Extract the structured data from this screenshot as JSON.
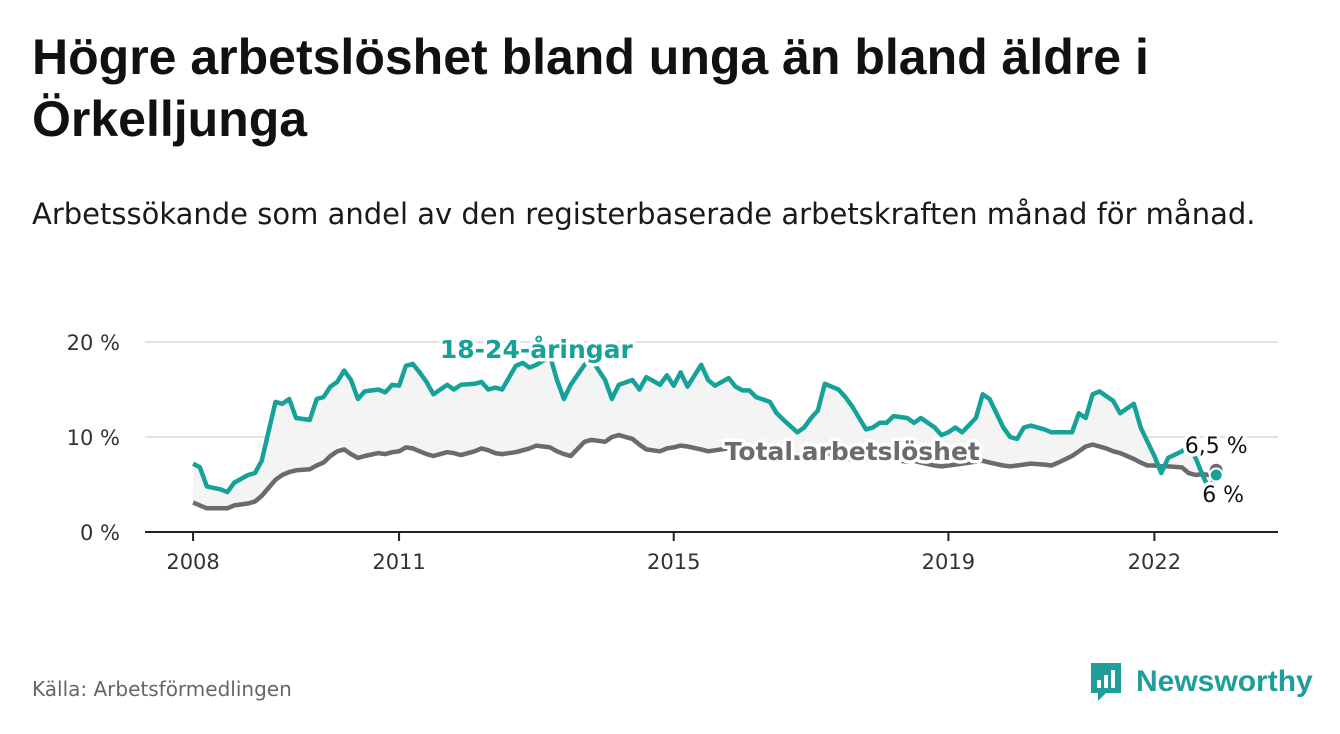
{
  "title": "Högre arbetslöshet bland unga än bland äldre i Örkelljunga",
  "subtitle": "Arbetssökande som andel av den registerbaserade arbetskraften månad för månad.",
  "source": "Källa: Arbetsförmedlingen",
  "brand": {
    "name": "Newsworthy",
    "icon": "newsworthy-logo-icon"
  },
  "colors": {
    "youth": "#16a299",
    "total": "#6b6b6e",
    "grid": "#d9d9d9",
    "fill": "#f4f4f4",
    "axis": "#222222"
  },
  "chart_data": {
    "type": "line",
    "title": "Högre arbetslöshet bland unga än bland äldre i Örkelljunga",
    "xlabel": "",
    "ylabel": "",
    "ylim": [
      0,
      20
    ],
    "xlim": [
      2007.3,
      2023.8
    ],
    "grid": true,
    "y_ticks": [
      0,
      10,
      20
    ],
    "y_tick_labels": [
      "0 %",
      "10 %",
      "20 %"
    ],
    "x_ticks": [
      2008,
      2011,
      2015,
      2019,
      2022
    ],
    "x_tick_labels": [
      "2008",
      "2011",
      "2015",
      "2019",
      "2022"
    ],
    "series": [
      {
        "name": "18-24-åringar",
        "label": "18-24-åringar",
        "end_label": "6 %",
        "x": [
          2008.0,
          2008.1,
          2008.2,
          2008.4,
          2008.5,
          2008.6,
          2008.8,
          2008.9,
          2009.0,
          2009.2,
          2009.3,
          2009.4,
          2009.5,
          2009.7,
          2009.8,
          2009.9,
          2010.0,
          2010.1,
          2010.2,
          2010.3,
          2010.4,
          2010.5,
          2010.7,
          2010.8,
          2010.9,
          2011.0,
          2011.1,
          2011.2,
          2011.3,
          2011.4,
          2011.5,
          2011.7,
          2011.8,
          2011.9,
          2012.1,
          2012.2,
          2012.3,
          2012.4,
          2012.5,
          2012.7,
          2012.8,
          2012.9,
          2013.0,
          2013.2,
          2013.3,
          2013.4,
          2013.5,
          2013.7,
          2013.8,
          2014.0,
          2014.1,
          2014.2,
          2014.4,
          2014.5,
          2014.6,
          2014.8,
          2014.9,
          2015.0,
          2015.1,
          2015.2,
          2015.4,
          2015.5,
          2015.6,
          2015.8,
          2015.9,
          2016.0,
          2016.1,
          2016.2,
          2016.4,
          2016.5,
          2016.6,
          2016.8,
          2016.9,
          2017.0,
          2017.1,
          2017.2,
          2017.4,
          2017.5,
          2017.6,
          2017.8,
          2017.9,
          2018.0,
          2018.1,
          2018.2,
          2018.4,
          2018.5,
          2018.6,
          2018.8,
          2018.9,
          2019.0,
          2019.1,
          2019.2,
          2019.4,
          2019.5,
          2019.6,
          2019.8,
          2019.9,
          2020.0,
          2020.1,
          2020.2,
          2020.4,
          2020.5,
          2020.6,
          2020.8,
          2020.9,
          2021.0,
          2021.1,
          2021.2,
          2021.3,
          2021.4,
          2021.5,
          2021.6,
          2021.7,
          2021.8,
          2021.9,
          2022.0,
          2022.1,
          2022.2,
          2022.4,
          2022.5,
          2022.6,
          2022.7,
          2022.8,
          2022.9
        ],
        "values": [
          7.2,
          6.8,
          4.8,
          4.5,
          4.2,
          5.2,
          6.0,
          6.2,
          7.5,
          13.7,
          13.5,
          14.0,
          12.0,
          11.8,
          14.0,
          14.2,
          15.3,
          15.8,
          17.0,
          16.0,
          14.0,
          14.8,
          15.0,
          14.7,
          15.5,
          15.4,
          17.5,
          17.7,
          16.8,
          15.8,
          14.5,
          15.5,
          15.0,
          15.5,
          15.6,
          15.8,
          15.0,
          15.2,
          15.0,
          17.5,
          17.8,
          17.3,
          17.6,
          18.5,
          16.0,
          14.0,
          15.5,
          17.6,
          18.2,
          16.0,
          14.0,
          15.5,
          16.0,
          15.0,
          16.3,
          15.5,
          16.5,
          15.4,
          16.8,
          15.3,
          17.6,
          16.0,
          15.4,
          16.2,
          15.3,
          14.9,
          14.9,
          14.2,
          13.7,
          12.5,
          11.8,
          10.5,
          11.0,
          12.0,
          12.8,
          15.6,
          15.0,
          14.2,
          13.2,
          10.8,
          11.0,
          11.5,
          11.5,
          12.2,
          12.0,
          11.5,
          12.0,
          11.0,
          10.2,
          10.5,
          11.0,
          10.5,
          12.0,
          14.5,
          14.0,
          11.0,
          10.0,
          9.8,
          11.0,
          11.2,
          10.8,
          10.5,
          10.5,
          10.5,
          12.5,
          12.0,
          14.5,
          14.8,
          14.3,
          13.8,
          12.5,
          13.0,
          13.5,
          11.0,
          9.5,
          8.0,
          6.2,
          7.8,
          8.5,
          9.0,
          7.8,
          6.0,
          4.5,
          6.0
        ]
      },
      {
        "name": "Total arbetslöshet",
        "label": "Total arbetslöshet",
        "end_label": "6,5 %",
        "x": [
          2008.0,
          2008.1,
          2008.2,
          2008.4,
          2008.5,
          2008.6,
          2008.8,
          2008.9,
          2009.0,
          2009.2,
          2009.3,
          2009.4,
          2009.5,
          2009.7,
          2009.8,
          2009.9,
          2010.0,
          2010.1,
          2010.2,
          2010.3,
          2010.4,
          2010.5,
          2010.7,
          2010.8,
          2010.9,
          2011.0,
          2011.1,
          2011.2,
          2011.3,
          2011.4,
          2011.5,
          2011.7,
          2011.8,
          2011.9,
          2012.1,
          2012.2,
          2012.3,
          2012.4,
          2012.5,
          2012.7,
          2012.8,
          2012.9,
          2013.0,
          2013.2,
          2013.3,
          2013.4,
          2013.5,
          2013.7,
          2013.8,
          2014.0,
          2014.1,
          2014.2,
          2014.4,
          2014.5,
          2014.6,
          2014.8,
          2014.9,
          2015.0,
          2015.1,
          2015.2,
          2015.4,
          2015.5,
          2015.6,
          2015.8,
          2015.9,
          2016.0,
          2016.1,
          2016.2,
          2016.4,
          2016.5,
          2016.6,
          2016.8,
          2016.9,
          2017.0,
          2017.1,
          2017.2,
          2017.4,
          2017.5,
          2017.6,
          2017.8,
          2017.9,
          2018.0,
          2018.1,
          2018.2,
          2018.4,
          2018.5,
          2018.6,
          2018.8,
          2018.9,
          2019.0,
          2019.1,
          2019.2,
          2019.4,
          2019.5,
          2019.6,
          2019.8,
          2019.9,
          2020.0,
          2020.1,
          2020.2,
          2020.4,
          2020.5,
          2020.6,
          2020.8,
          2020.9,
          2021.0,
          2021.1,
          2021.2,
          2021.3,
          2021.4,
          2021.5,
          2021.6,
          2021.7,
          2021.8,
          2021.9,
          2022.0,
          2022.1,
          2022.2,
          2022.4,
          2022.5,
          2022.6,
          2022.7,
          2022.8,
          2022.9
        ],
        "values": [
          3.1,
          2.8,
          2.5,
          2.5,
          2.5,
          2.8,
          3.0,
          3.2,
          3.8,
          5.5,
          6.0,
          6.3,
          6.5,
          6.6,
          7.0,
          7.3,
          8.0,
          8.5,
          8.7,
          8.2,
          7.8,
          8.0,
          8.3,
          8.2,
          8.4,
          8.5,
          8.9,
          8.8,
          8.5,
          8.2,
          8.0,
          8.4,
          8.3,
          8.1,
          8.5,
          8.8,
          8.6,
          8.3,
          8.2,
          8.4,
          8.6,
          8.8,
          9.1,
          8.9,
          8.5,
          8.2,
          8.0,
          9.5,
          9.7,
          9.5,
          10.0,
          10.2,
          9.8,
          9.2,
          8.7,
          8.5,
          8.8,
          8.9,
          9.1,
          9.0,
          8.7,
          8.5,
          8.6,
          8.8,
          8.7,
          8.5,
          8.8,
          8.6,
          8.3,
          8.1,
          8.0,
          7.8,
          7.9,
          8.0,
          8.2,
          8.3,
          8.0,
          7.8,
          7.6,
          7.6,
          7.7,
          7.8,
          7.9,
          7.6,
          7.4,
          7.5,
          7.3,
          7.0,
          6.9,
          7.0,
          7.1,
          7.2,
          7.4,
          7.5,
          7.3,
          7.0,
          6.9,
          7.0,
          7.1,
          7.2,
          7.1,
          7.0,
          7.3,
          8.0,
          8.5,
          9.0,
          9.2,
          9.0,
          8.8,
          8.5,
          8.3,
          8.0,
          7.7,
          7.3,
          7.0,
          7.0,
          6.9,
          6.9,
          6.8,
          6.2,
          6.0,
          6.1,
          6.0,
          6.5
        ]
      }
    ]
  }
}
